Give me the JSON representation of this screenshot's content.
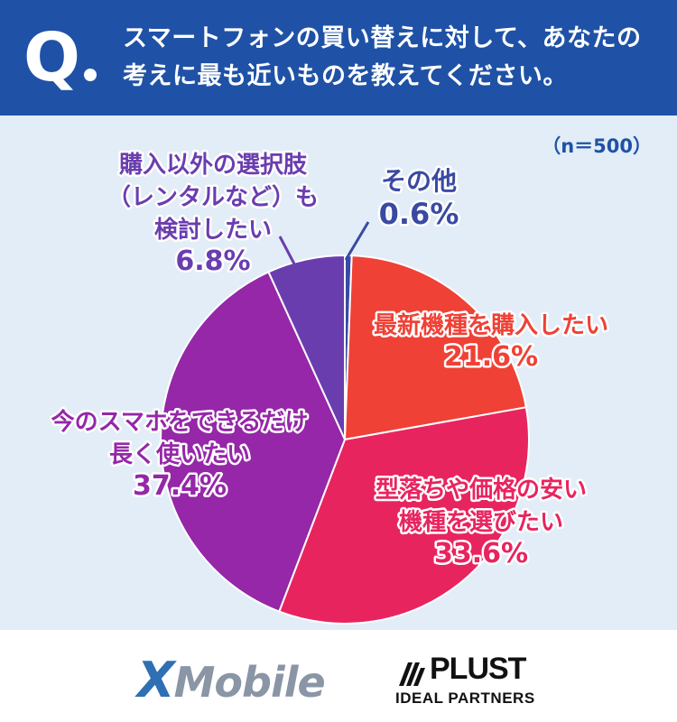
{
  "header": {
    "q_mark": "Q",
    "question_lines": [
      "スマートフォンの買い替えに対して、あなたの",
      "考えに最も近いものを教えてください。"
    ]
  },
  "sample_size": "（n＝500）",
  "chart_data": {
    "type": "pie",
    "title": "",
    "slices": [
      {
        "label_lines": [
          "その他"
        ],
        "percent_label": "0.6%",
        "value": 0.6,
        "color": "#3a4aa3",
        "label_color": "#3a4aa3"
      },
      {
        "label_lines": [
          "最新機種を購入したい"
        ],
        "percent_label": "21.6%",
        "value": 21.6,
        "color": "#ef4136",
        "label_color": "#ef4136"
      },
      {
        "label_lines": [
          "型落ちや価格の安い",
          "機種を選びたい"
        ],
        "percent_label": "33.6%",
        "value": 33.6,
        "color": "#e8245f",
        "label_color": "#e8245f"
      },
      {
        "label_lines": [
          "今のスマホをできるだけ",
          "長く使いたい"
        ],
        "percent_label": "37.4%",
        "value": 37.4,
        "color": "#9527a8",
        "label_color": "#9527a8"
      },
      {
        "label_lines": [
          "購入以外の選択肢",
          "（レンタルなど）も",
          "検討したい"
        ],
        "percent_label": "6.8%",
        "value": 6.8,
        "color": "#6a3daf",
        "label_color": "#6a3daf"
      }
    ]
  },
  "logos": {
    "xmobile_x": "X",
    "xmobile_rest": "Mobile",
    "plust_name": "PLUST",
    "plust_sub": "IDEAL PARTNERS"
  },
  "colors": {
    "header_bg": "#1f52a6",
    "panel_bg": "#e3edf7"
  }
}
